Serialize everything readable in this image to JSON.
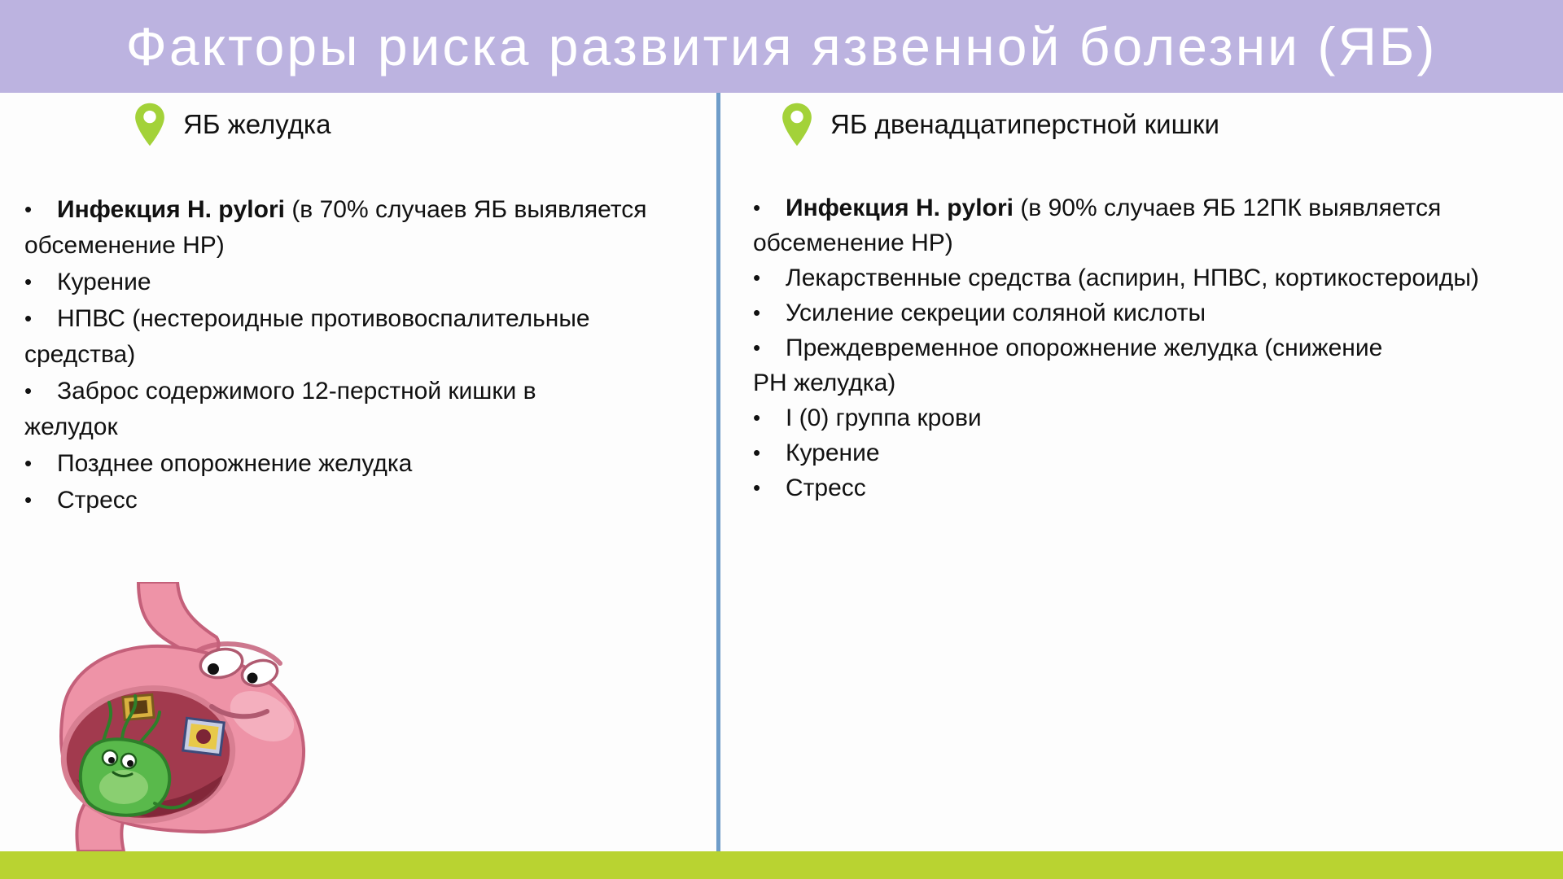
{
  "slide_title": "Факторы риска развития язвенной болезни (ЯБ)",
  "columns": {
    "left": {
      "icon": "location-pin-icon",
      "header": "ЯБ желудка",
      "bullets": [
        {
          "bold": "Инфекция H. pylori",
          "lines": [
            " (в 70% случаев ЯБ выявляется",
            "обсеменение НР)"
          ]
        },
        {
          "lines": [
            "Курение"
          ]
        },
        {
          "lines": [
            "НПВС (нестероидные противовоспалительные",
            "средства)"
          ]
        },
        {
          "lines": [
            "Заброс содержимого 12-перстной кишки в",
            "желудок"
          ]
        },
        {
          "lines": [
            "Позднее опорожнение желудка"
          ]
        },
        {
          "lines": [
            "Стресс"
          ]
        }
      ]
    },
    "right": {
      "icon": "location-pin-icon",
      "header": "ЯБ двенадцатиперстной кишки",
      "bullets": [
        {
          "bold": "Инфекция H. pylori",
          "lines": [
            " (в 90% случаев ЯБ 12ПК выявляется",
            "обсеменение НР)"
          ]
        },
        {
          "lines": [
            "Лекарственные средства (аспирин, НПВС, кортикостероиды)"
          ]
        },
        {
          "lines": [
            "Усиление секреции соляной кислоты"
          ]
        },
        {
          "lines": [
            "Преждевременное опорожнение желудка (снижение",
            "РН желудка)"
          ]
        },
        {
          "lines": [
            "I (0) группа крови"
          ]
        },
        {
          "lines": [
            "Курение"
          ]
        },
        {
          "lines": [
            "Стресс"
          ]
        }
      ]
    }
  },
  "image": {
    "icon": "sad-stomach-with-h-pylori-cartoon"
  },
  "colors": {
    "slide_bg": "#fdfdfd",
    "header_bg": "#bcb3e0",
    "footer_bg": "#b9d331",
    "divider": "#6f9dc9",
    "pin": "#a3d239",
    "title": "#ffffff",
    "text": "#111111"
  }
}
